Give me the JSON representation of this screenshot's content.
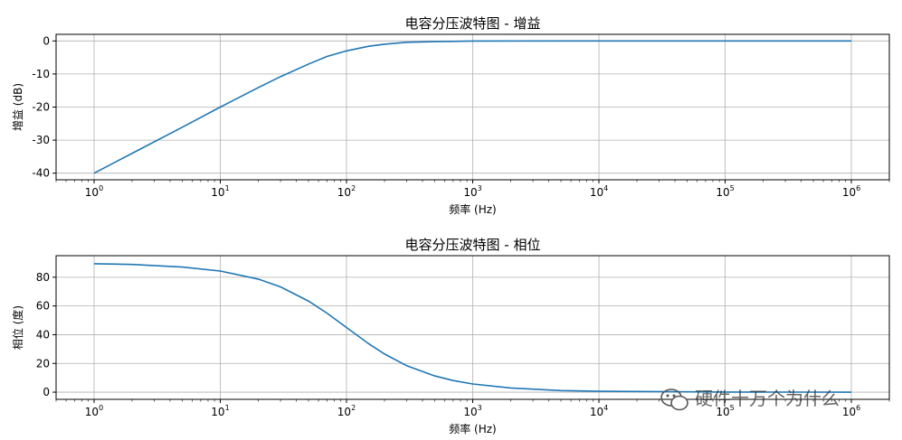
{
  "chart_data": [
    {
      "type": "line",
      "title": "电容分压波特图 - 增益",
      "xlabel": "频率 (Hz)",
      "ylabel": "增益 (dB)",
      "xscale": "log",
      "xlim": [
        0.5,
        2000000
      ],
      "ylim": [
        -42,
        2
      ],
      "xticks": [
        "10^0",
        "10^1",
        "10^2",
        "10^3",
        "10^4",
        "10^5",
        "10^6"
      ],
      "yticks": [
        0,
        -10,
        -20,
        -30,
        -40
      ],
      "grid": true,
      "series": [
        {
          "color": "#1f77b4",
          "points": [
            [
              1,
              -40
            ],
            [
              2,
              -34
            ],
            [
              5,
              -26.1
            ],
            [
              10,
              -20
            ],
            [
              20,
              -14.1
            ],
            [
              30,
              -10.8
            ],
            [
              50,
              -7
            ],
            [
              70,
              -4.7
            ],
            [
              100,
              -3
            ],
            [
              150,
              -1.6
            ],
            [
              200,
              -1
            ],
            [
              300,
              -0.4
            ],
            [
              500,
              -0.2
            ],
            [
              1000,
              -0.04
            ],
            [
              10000,
              0
            ],
            [
              100000,
              0
            ],
            [
              1000000,
              0
            ]
          ]
        }
      ]
    },
    {
      "type": "line",
      "title": "电容分压波特图 - 相位",
      "xlabel": "频率 (Hz)",
      "ylabel": "相位 (度)",
      "xscale": "log",
      "xlim": [
        0.5,
        2000000
      ],
      "ylim": [
        -5,
        95
      ],
      "xticks": [
        "10^0",
        "10^1",
        "10^2",
        "10^3",
        "10^4",
        "10^5",
        "10^6"
      ],
      "yticks": [
        80,
        60,
        40,
        20,
        0
      ],
      "grid": true,
      "series": [
        {
          "color": "#1f77b4",
          "points": [
            [
              1,
              89.4
            ],
            [
              2,
              88.9
            ],
            [
              5,
              87.1
            ],
            [
              10,
              84.3
            ],
            [
              20,
              78.7
            ],
            [
              30,
              73.3
            ],
            [
              50,
              63.4
            ],
            [
              70,
              55
            ],
            [
              100,
              45
            ],
            [
              150,
              33.7
            ],
            [
              200,
              26.6
            ],
            [
              300,
              18.4
            ],
            [
              500,
              11.3
            ],
            [
              700,
              8.1
            ],
            [
              1000,
              5.7
            ],
            [
              2000,
              2.9
            ],
            [
              5000,
              1.1
            ],
            [
              10000,
              0.6
            ],
            [
              100000,
              0.1
            ],
            [
              1000000,
              0
            ]
          ]
        }
      ]
    }
  ],
  "watermark": "硬件十万个为什么",
  "watermark_icon": "wechat-icon"
}
